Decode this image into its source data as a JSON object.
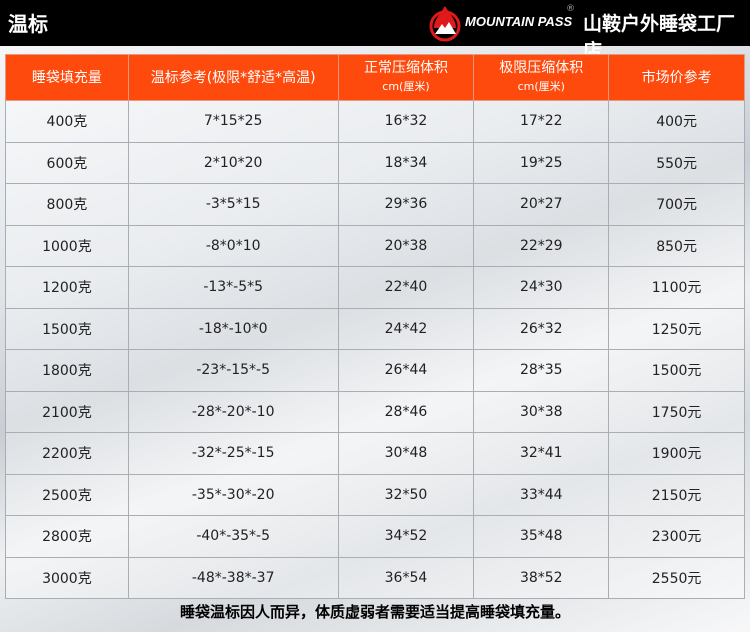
{
  "header": {
    "title": "温标",
    "brand": "MOUNTAIN PASS",
    "registered": "®",
    "shop": "山鞍户外睡袋工厂店",
    "brand_color": "#e0191b"
  },
  "table": {
    "columns": [
      {
        "label": "睡袋填充量",
        "sub": ""
      },
      {
        "label": "温标参考(极限*舒适*高温)",
        "sub": ""
      },
      {
        "label": "正常压缩体积",
        "sub": "cm(厘米)"
      },
      {
        "label": "极限压缩体积",
        "sub": "cm(厘米)"
      },
      {
        "label": "市场价参考",
        "sub": ""
      }
    ],
    "rows": [
      [
        "400克",
        "7*15*25",
        "16*32",
        "17*22",
        "400元"
      ],
      [
        "600克",
        "2*10*20",
        "18*34",
        "19*25",
        "550元"
      ],
      [
        "800克",
        "-3*5*15",
        "29*36",
        "20*27",
        "700元"
      ],
      [
        "1000克",
        "-8*0*10",
        "20*38",
        "22*29",
        "850元"
      ],
      [
        "1200克",
        "-13*-5*5",
        "22*40",
        "24*30",
        "1100元"
      ],
      [
        "1500克",
        "-18*-10*0",
        "24*42",
        "26*32",
        "1250元"
      ],
      [
        "1800克",
        "-23*-15*-5",
        "26*44",
        "28*35",
        "1500元"
      ],
      [
        "2100克",
        "-28*-20*-10",
        "28*46",
        "30*38",
        "1750元"
      ],
      [
        "2200克",
        "-32*-25*-15",
        "30*48",
        "32*41",
        "1900元"
      ],
      [
        "2500克",
        "-35*-30*-20",
        "32*50",
        "33*44",
        "2150元"
      ],
      [
        "2800克",
        "-40*-35*-5",
        "34*52",
        "35*48",
        "2300元"
      ],
      [
        "3000克",
        "-48*-38*-37",
        "36*54",
        "38*52",
        "2550元"
      ]
    ],
    "header_color": "#ff4a0d"
  },
  "footer": {
    "note": "睡袋温标因人而异，体质虚弱者需要适当提高睡袋填充量。"
  }
}
